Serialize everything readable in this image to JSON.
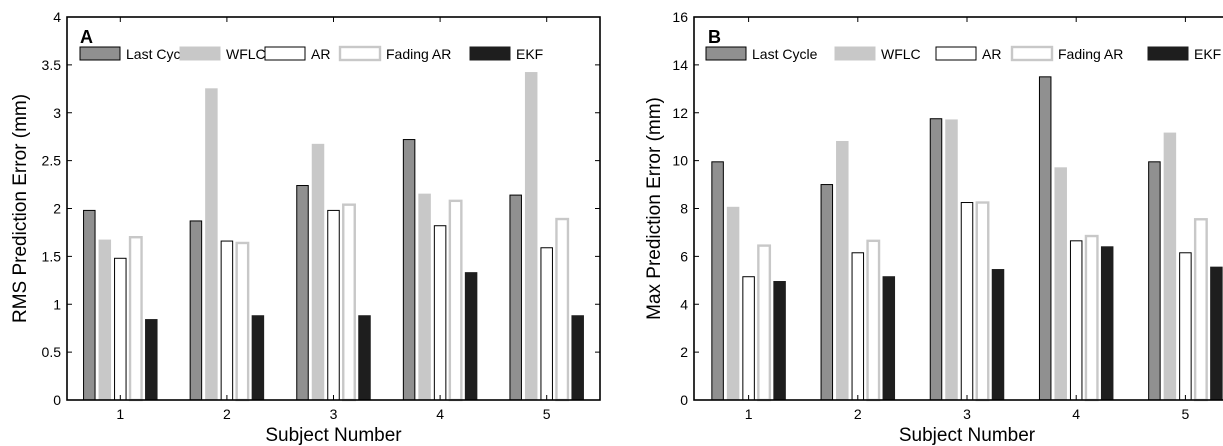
{
  "colors": {
    "Last Cycle": "#909090",
    "WFLC": "#c8c8c8",
    "AR": "#ffffff",
    "Fading AR": "#ffffff",
    "EKF": "#1e1e1e",
    "ar_stroke": "#000000",
    "fading_ar_stroke": "#c8c8c8"
  },
  "chart_data": [
    {
      "type": "bar",
      "panel_label": "A",
      "title": "",
      "xlabel": "Subject Number",
      "ylabel": "RMS Prediction Error (mm)",
      "ylim": [
        0,
        4
      ],
      "yticks": [
        0,
        0.5,
        1,
        1.5,
        2,
        2.5,
        3,
        3.5,
        4
      ],
      "ytick_labels": [
        "0",
        "0.5",
        "1",
        "1.5",
        "2",
        "2.5",
        "3",
        "3.5",
        "4"
      ],
      "categories": [
        "1",
        "2",
        "3",
        "4",
        "5"
      ],
      "legend_position": "top",
      "grid": false,
      "series": [
        {
          "name": "Last Cycle",
          "values": [
            1.98,
            1.87,
            2.24,
            2.72,
            2.14
          ]
        },
        {
          "name": "WFLC",
          "values": [
            1.67,
            3.25,
            2.67,
            2.15,
            3.42
          ]
        },
        {
          "name": "AR",
          "values": [
            1.48,
            1.66,
            1.98,
            1.82,
            1.59
          ]
        },
        {
          "name": "Fading AR",
          "values": [
            1.7,
            1.64,
            2.04,
            2.08,
            1.89
          ]
        },
        {
          "name": "EKF",
          "values": [
            0.84,
            0.88,
            0.88,
            1.33,
            0.88
          ]
        }
      ]
    },
    {
      "type": "bar",
      "panel_label": "B",
      "title": "",
      "xlabel": "Subject Number",
      "ylabel": "Max Prediction Error (mm)",
      "ylim": [
        0,
        16
      ],
      "yticks": [
        0,
        2,
        4,
        6,
        8,
        10,
        12,
        14,
        16
      ],
      "ytick_labels": [
        "0",
        "2",
        "4",
        "6",
        "8",
        "10",
        "12",
        "14",
        "16"
      ],
      "categories": [
        "1",
        "2",
        "3",
        "4",
        "5"
      ],
      "legend_position": "top",
      "grid": false,
      "series": [
        {
          "name": "Last Cycle",
          "values": [
            9.95,
            9.0,
            11.75,
            13.5,
            9.95
          ]
        },
        {
          "name": "WFLC",
          "values": [
            8.05,
            10.8,
            11.7,
            9.7,
            11.15
          ]
        },
        {
          "name": "AR",
          "values": [
            5.15,
            6.15,
            8.25,
            6.65,
            6.15
          ]
        },
        {
          "name": "Fading AR",
          "values": [
            6.45,
            6.65,
            8.25,
            6.85,
            7.55
          ]
        },
        {
          "name": "EKF",
          "values": [
            4.95,
            5.15,
            5.45,
            6.4,
            5.55
          ]
        }
      ]
    }
  ]
}
